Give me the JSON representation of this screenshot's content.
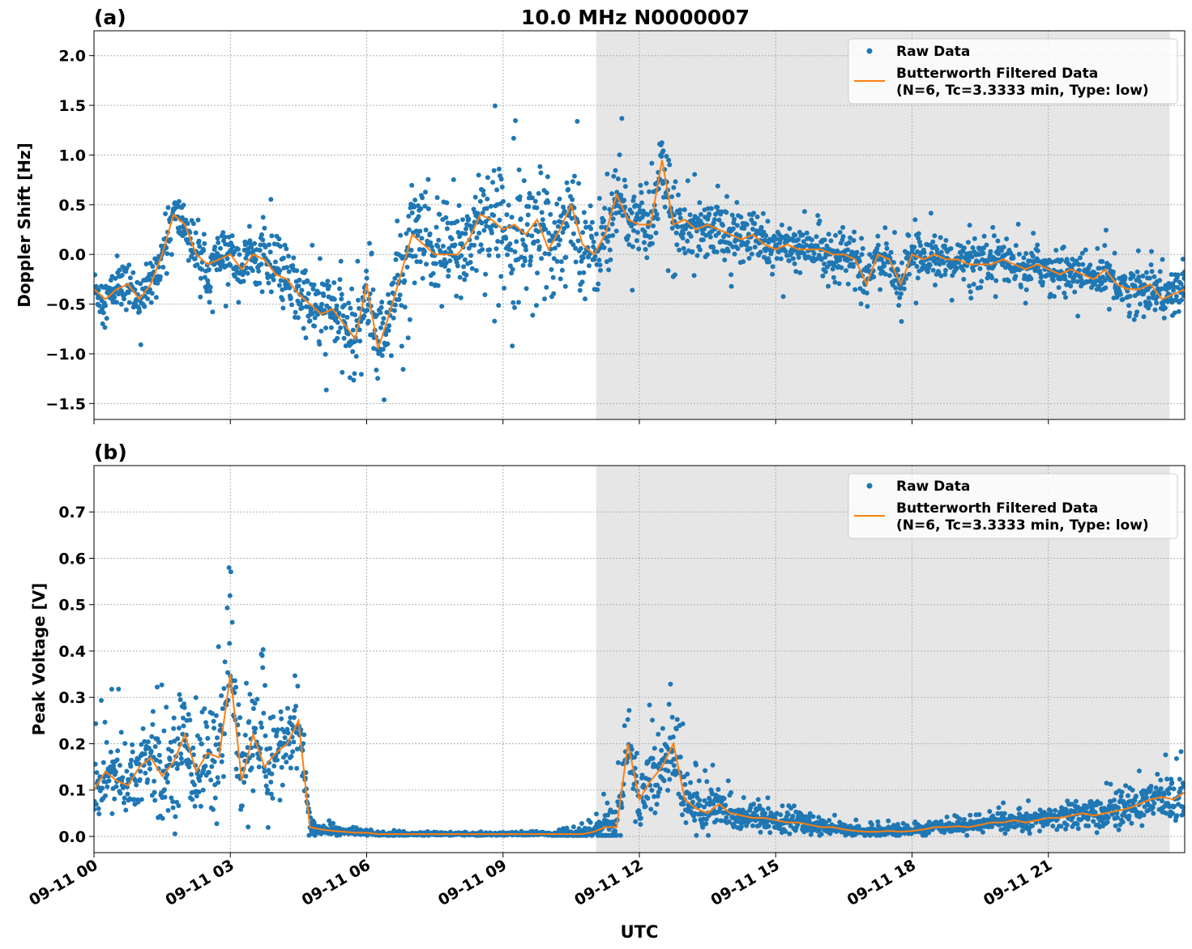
{
  "title": "10.0 MHz N0000007",
  "xlabel": "UTC",
  "x_ticks": [
    "09-11 00",
    "09-11 03",
    "09-11 06",
    "09-11 09",
    "09-11 12",
    "09-11 15",
    "09-11 18",
    "09-11 21"
  ],
  "x_tick_hours": [
    0,
    3,
    6,
    9,
    12,
    15,
    18,
    21
  ],
  "x_range_hours": [
    0,
    24
  ],
  "shaded_region_hours": [
    11.05,
    23.67
  ],
  "colors": {
    "raw": "#1f77b4",
    "filtered": "#ff7f0e",
    "shade": "#e6e6e6",
    "grid": "#b0b0b0"
  },
  "legend": {
    "raw": "Raw Data",
    "filtered_line1": "Butterworth Filtered Data",
    "filtered_line2": "(N=6, Tc=3.3333 min, Type: low)",
    "placement": "upper-right"
  },
  "chart_data": [
    {
      "type": "scatter+line",
      "panel_label": "(a)",
      "ylabel": "Doppler Shift [Hz]",
      "ylim": [
        -1.66,
        2.25
      ],
      "y_ticks": [
        "−1.5",
        "−1.0",
        "−0.5",
        "0.0",
        "0.5",
        "1.0",
        "1.5",
        "2.0"
      ],
      "y_tick_values": [
        -1.5,
        -1.0,
        -0.5,
        0.0,
        0.5,
        1.0,
        1.5,
        2.0
      ],
      "grid": true,
      "filtered_step_hours": 0.25,
      "filtered": [
        -0.35,
        -0.45,
        -0.35,
        -0.3,
        -0.45,
        -0.3,
        0.0,
        0.4,
        0.3,
        0.0,
        -0.1,
        -0.05,
        0.0,
        -0.15,
        0.0,
        -0.05,
        -0.2,
        -0.25,
        -0.4,
        -0.5,
        -0.6,
        -0.55,
        -0.7,
        -0.85,
        -0.3,
        -0.95,
        -0.6,
        -0.2,
        0.2,
        0.1,
        0.0,
        0.0,
        0.0,
        0.15,
        0.4,
        0.35,
        0.25,
        0.3,
        0.2,
        0.35,
        0.05,
        0.25,
        0.5,
        0.1,
        0.0,
        0.2,
        0.6,
        0.35,
        0.3,
        0.3,
        0.95,
        0.3,
        0.35,
        0.25,
        0.3,
        0.25,
        0.2,
        0.15,
        0.2,
        0.1,
        0.05,
        0.1,
        0.05,
        0.05,
        0.05,
        0.0,
        0.0,
        -0.05,
        -0.3,
        0.0,
        -0.05,
        -0.3,
        0.0,
        -0.05,
        0.0,
        -0.05,
        -0.05,
        -0.1,
        -0.1,
        -0.1,
        -0.05,
        -0.1,
        -0.15,
        -0.1,
        -0.15,
        -0.2,
        -0.15,
        -0.2,
        -0.25,
        -0.15,
        -0.3,
        -0.35,
        -0.35,
        -0.3,
        -0.45,
        -0.4,
        -0.35
      ],
      "raw_spread_hourly": [
        0.2,
        0.2,
        0.22,
        0.22,
        0.3,
        0.35,
        0.35,
        0.5,
        0.5,
        0.5,
        0.55,
        0.4,
        0.35,
        0.3,
        0.25,
        0.22,
        0.2,
        0.22,
        0.2,
        0.18,
        0.18,
        0.18,
        0.2,
        0.22,
        0.22
      ]
    },
    {
      "type": "scatter+line",
      "panel_label": "(b)",
      "ylabel": "Peak Voltage [V]",
      "ylim": [
        -0.035,
        0.8
      ],
      "y_ticks": [
        "0.0",
        "0.1",
        "0.2",
        "0.3",
        "0.4",
        "0.5",
        "0.6",
        "0.7"
      ],
      "y_tick_values": [
        0.0,
        0.1,
        0.2,
        0.3,
        0.4,
        0.5,
        0.6,
        0.7
      ],
      "grid": true,
      "filtered_step_hours": 0.25,
      "filtered": [
        0.1,
        0.14,
        0.12,
        0.11,
        0.15,
        0.17,
        0.13,
        0.16,
        0.22,
        0.14,
        0.18,
        0.17,
        0.35,
        0.12,
        0.22,
        0.15,
        0.18,
        0.2,
        0.25,
        0.02,
        0.015,
        0.012,
        0.01,
        0.008,
        0.008,
        0.005,
        0.005,
        0.005,
        0.005,
        0.005,
        0.005,
        0.005,
        0.005,
        0.005,
        0.005,
        0.005,
        0.005,
        0.005,
        0.005,
        0.005,
        0.005,
        0.005,
        0.005,
        0.005,
        0.01,
        0.02,
        0.02,
        0.2,
        0.08,
        0.12,
        0.15,
        0.2,
        0.08,
        0.06,
        0.05,
        0.07,
        0.05,
        0.045,
        0.04,
        0.04,
        0.035,
        0.03,
        0.03,
        0.025,
        0.02,
        0.02,
        0.015,
        0.012,
        0.01,
        0.01,
        0.012,
        0.01,
        0.012,
        0.015,
        0.02,
        0.02,
        0.022,
        0.02,
        0.025,
        0.03,
        0.03,
        0.035,
        0.03,
        0.035,
        0.04,
        0.04,
        0.045,
        0.05,
        0.045,
        0.05,
        0.055,
        0.06,
        0.07,
        0.08,
        0.085,
        0.08,
        0.095
      ],
      "raw_spread_hourly": [
        0.08,
        0.09,
        0.1,
        0.11,
        0.1,
        0.01,
        0.004,
        0.003,
        0.003,
        0.003,
        0.003,
        0.02,
        0.08,
        0.06,
        0.03,
        0.025,
        0.015,
        0.01,
        0.01,
        0.012,
        0.018,
        0.02,
        0.03,
        0.04,
        0.045
      ]
    }
  ]
}
